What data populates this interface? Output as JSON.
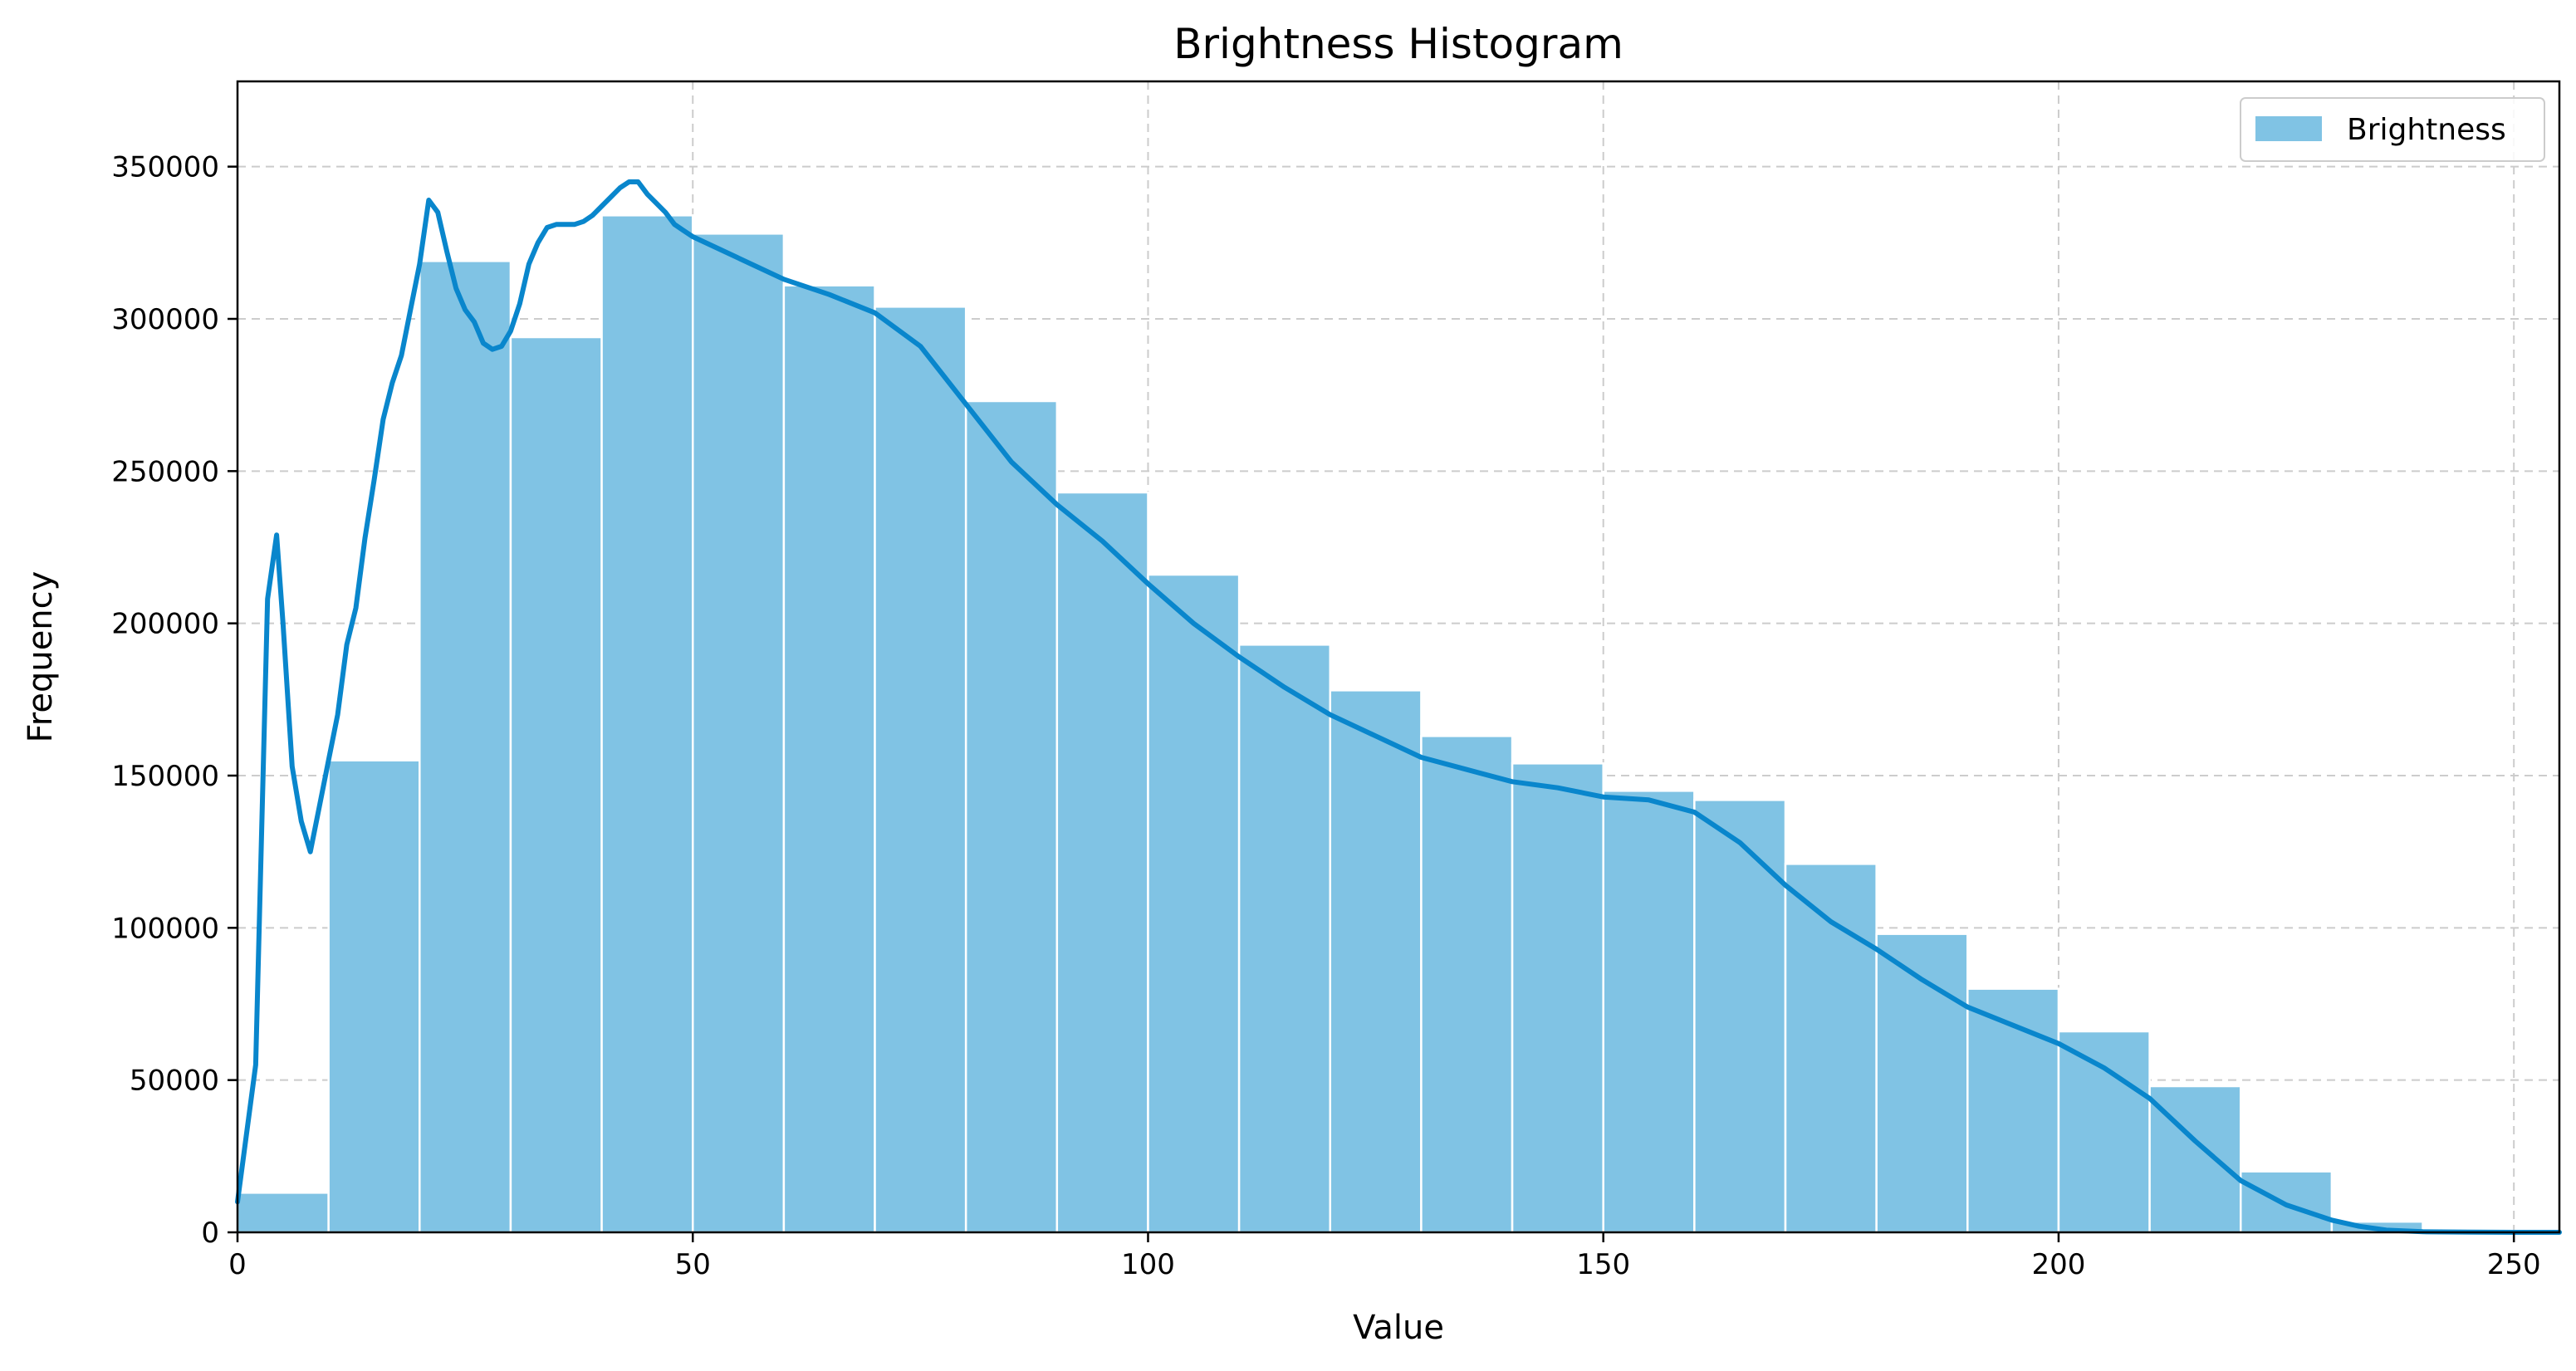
{
  "chart_data": {
    "type": "bar",
    "title": "Brightness Histogram",
    "xlabel": "Value",
    "ylabel": "Frequency",
    "xlim": [
      0,
      255
    ],
    "ylim": [
      0,
      378000
    ],
    "x_ticks": [
      0,
      50,
      100,
      150,
      200,
      250
    ],
    "y_ticks": [
      0,
      50000,
      100000,
      150000,
      200000,
      250000,
      300000,
      350000
    ],
    "grid": true,
    "legend_position": "top-right",
    "bin_width": 10,
    "bins": [
      {
        "start": 0,
        "end": 10,
        "value": 13000
      },
      {
        "start": 10,
        "end": 20,
        "value": 155000
      },
      {
        "start": 20,
        "end": 30,
        "value": 319000
      },
      {
        "start": 30,
        "end": 40,
        "value": 294000
      },
      {
        "start": 40,
        "end": 50,
        "value": 334000
      },
      {
        "start": 50,
        "end": 60,
        "value": 328000
      },
      {
        "start": 60,
        "end": 70,
        "value": 311000
      },
      {
        "start": 70,
        "end": 80,
        "value": 304000
      },
      {
        "start": 80,
        "end": 90,
        "value": 273000
      },
      {
        "start": 90,
        "end": 100,
        "value": 243000
      },
      {
        "start": 100,
        "end": 110,
        "value": 216000
      },
      {
        "start": 110,
        "end": 120,
        "value": 193000
      },
      {
        "start": 120,
        "end": 130,
        "value": 178000
      },
      {
        "start": 130,
        "end": 140,
        "value": 163000
      },
      {
        "start": 140,
        "end": 150,
        "value": 154000
      },
      {
        "start": 150,
        "end": 160,
        "value": 145000
      },
      {
        "start": 160,
        "end": 170,
        "value": 142000
      },
      {
        "start": 170,
        "end": 180,
        "value": 121000
      },
      {
        "start": 180,
        "end": 190,
        "value": 98000
      },
      {
        "start": 190,
        "end": 200,
        "value": 80000
      },
      {
        "start": 200,
        "end": 210,
        "value": 66000
      },
      {
        "start": 210,
        "end": 220,
        "value": 48000
      },
      {
        "start": 220,
        "end": 230,
        "value": 20000
      },
      {
        "start": 230,
        "end": 240,
        "value": 3500
      },
      {
        "start": 240,
        "end": 250,
        "value": 500
      },
      {
        "start": 250,
        "end": 255,
        "value": 100
      }
    ],
    "series": [
      {
        "name": "Brightness",
        "color": "#80c3e4"
      }
    ],
    "kde_curve": {
      "color": "#0986cc",
      "x": [
        0,
        2,
        3.3,
        4.3,
        5,
        6,
        7,
        8,
        9,
        10,
        11,
        12,
        13,
        14,
        15,
        16,
        17,
        18,
        19,
        20,
        21,
        22,
        23,
        24,
        25,
        26,
        27,
        28,
        29,
        30,
        31,
        32,
        33,
        34,
        35,
        36,
        37,
        38,
        39,
        40,
        41,
        42,
        43,
        44,
        45,
        46,
        47,
        48,
        49,
        50,
        55,
        60,
        65,
        70,
        75,
        80,
        85,
        90,
        95,
        100,
        105,
        110,
        115,
        120,
        125,
        130,
        135,
        140,
        145,
        150,
        155,
        160,
        165,
        170,
        175,
        180,
        185,
        190,
        195,
        200,
        205,
        210,
        215,
        220,
        225,
        230,
        233,
        236,
        240,
        245,
        250,
        255
      ],
      "y": [
        10000,
        55000,
        208000,
        229000,
        200000,
        153000,
        135000,
        125000,
        140000,
        155000,
        170000,
        193000,
        205000,
        228000,
        247000,
        267000,
        279000,
        288000,
        303000,
        318000,
        339000,
        335000,
        322000,
        310000,
        303000,
        299000,
        292000,
        290000,
        291000,
        296000,
        305000,
        318000,
        325000,
        330000,
        331000,
        331000,
        331000,
        332000,
        334000,
        337000,
        340000,
        343000,
        345000,
        345000,
        341000,
        338000,
        335000,
        331000,
        329000,
        327000,
        320000,
        313000,
        308000,
        302000,
        291000,
        272000,
        253000,
        239000,
        227000,
        213000,
        200000,
        189000,
        179000,
        170000,
        163000,
        156000,
        152000,
        148000,
        146000,
        143000,
        142000,
        138000,
        128000,
        114000,
        102000,
        93000,
        83000,
        74000,
        68000,
        62000,
        54000,
        44000,
        30000,
        17000,
        9000,
        4000,
        2000,
        700,
        200,
        50,
        10,
        0
      ]
    }
  }
}
